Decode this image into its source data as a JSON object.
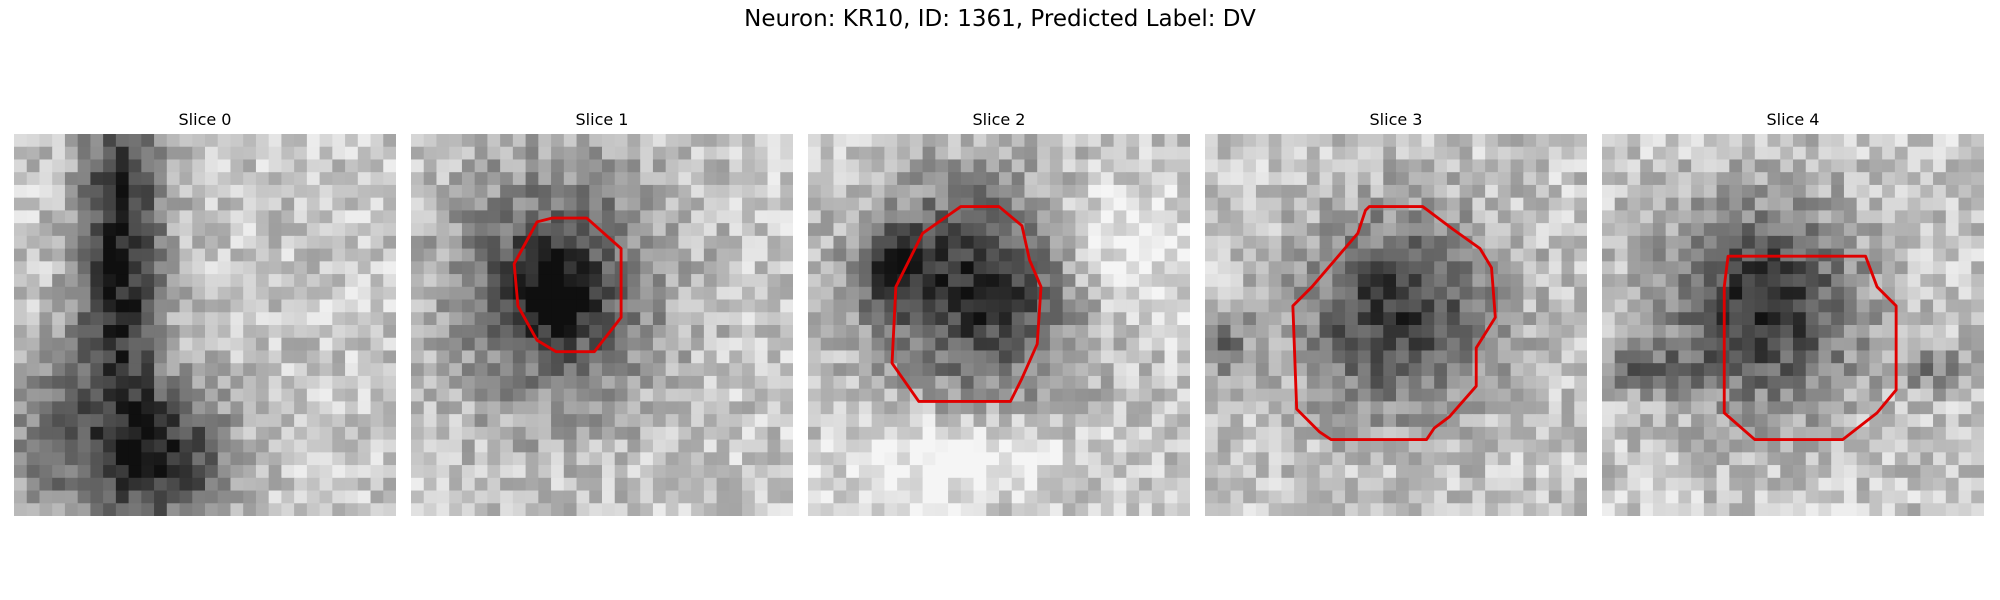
{
  "title": "Neuron: KR10, ID: 1361, Predicted Label: DV",
  "panels": [
    {
      "title": "Slice 0",
      "seed": 11,
      "blobs": [
        [
          0.28,
          0.32,
          0.12,
          0.55,
          0.75
        ],
        [
          0.4,
          0.85,
          0.18,
          0.2,
          0.65
        ],
        [
          0.1,
          0.8,
          0.15,
          0.25,
          0.35
        ]
      ],
      "contour": null
    },
    {
      "title": "Slice 1",
      "seed": 23,
      "blobs": [
        [
          0.38,
          0.4,
          0.3,
          0.35,
          0.55
        ],
        [
          0.36,
          0.42,
          0.14,
          0.15,
          0.35
        ]
      ],
      "contour": [
        [
          0.33,
          0.23
        ],
        [
          0.37,
          0.22
        ],
        [
          0.46,
          0.22
        ],
        [
          0.55,
          0.3
        ],
        [
          0.55,
          0.48
        ],
        [
          0.48,
          0.57
        ],
        [
          0.38,
          0.57
        ],
        [
          0.33,
          0.54
        ],
        [
          0.28,
          0.45
        ],
        [
          0.27,
          0.34
        ]
      ]
    },
    {
      "title": "Slice 2",
      "seed": 37,
      "blobs": [
        [
          0.45,
          0.4,
          0.3,
          0.3,
          0.7
        ],
        [
          0.22,
          0.35,
          0.1,
          0.12,
          0.4
        ],
        [
          0.8,
          0.3,
          0.25,
          0.2,
          -0.25
        ],
        [
          0.4,
          0.85,
          0.3,
          0.12,
          -0.3
        ]
      ],
      "contour": [
        [
          0.3,
          0.26
        ],
        [
          0.4,
          0.19
        ],
        [
          0.5,
          0.19
        ],
        [
          0.56,
          0.24
        ],
        [
          0.58,
          0.33
        ],
        [
          0.61,
          0.4
        ],
        [
          0.6,
          0.55
        ],
        [
          0.56,
          0.64
        ],
        [
          0.53,
          0.7
        ],
        [
          0.29,
          0.7
        ],
        [
          0.22,
          0.6
        ],
        [
          0.23,
          0.4
        ]
      ]
    },
    {
      "title": "Slice 3",
      "seed": 51,
      "blobs": [
        [
          0.5,
          0.47,
          0.28,
          0.28,
          0.62
        ],
        [
          0.05,
          0.55,
          0.08,
          0.1,
          0.35
        ]
      ],
      "contour": [
        [
          0.42,
          0.2
        ],
        [
          0.43,
          0.19
        ],
        [
          0.57,
          0.19
        ],
        [
          0.65,
          0.25
        ],
        [
          0.72,
          0.3
        ],
        [
          0.75,
          0.35
        ],
        [
          0.76,
          0.48
        ],
        [
          0.71,
          0.56
        ],
        [
          0.71,
          0.66
        ],
        [
          0.64,
          0.74
        ],
        [
          0.6,
          0.77
        ],
        [
          0.58,
          0.8
        ],
        [
          0.33,
          0.8
        ],
        [
          0.3,
          0.78
        ],
        [
          0.24,
          0.72
        ],
        [
          0.23,
          0.45
        ],
        [
          0.28,
          0.4
        ],
        [
          0.4,
          0.26
        ]
      ]
    },
    {
      "title": "Slice 4",
      "seed": 67,
      "blobs": [
        [
          0.42,
          0.45,
          0.28,
          0.28,
          0.68
        ],
        [
          0.1,
          0.62,
          0.15,
          0.06,
          0.35
        ],
        [
          0.88,
          0.62,
          0.12,
          0.06,
          0.3
        ]
      ],
      "contour": [
        [
          0.33,
          0.32
        ],
        [
          0.69,
          0.32
        ],
        [
          0.72,
          0.4
        ],
        [
          0.77,
          0.45
        ],
        [
          0.77,
          0.67
        ],
        [
          0.72,
          0.73
        ],
        [
          0.63,
          0.8
        ],
        [
          0.4,
          0.8
        ],
        [
          0.32,
          0.73
        ],
        [
          0.32,
          0.4
        ]
      ]
    }
  ]
}
